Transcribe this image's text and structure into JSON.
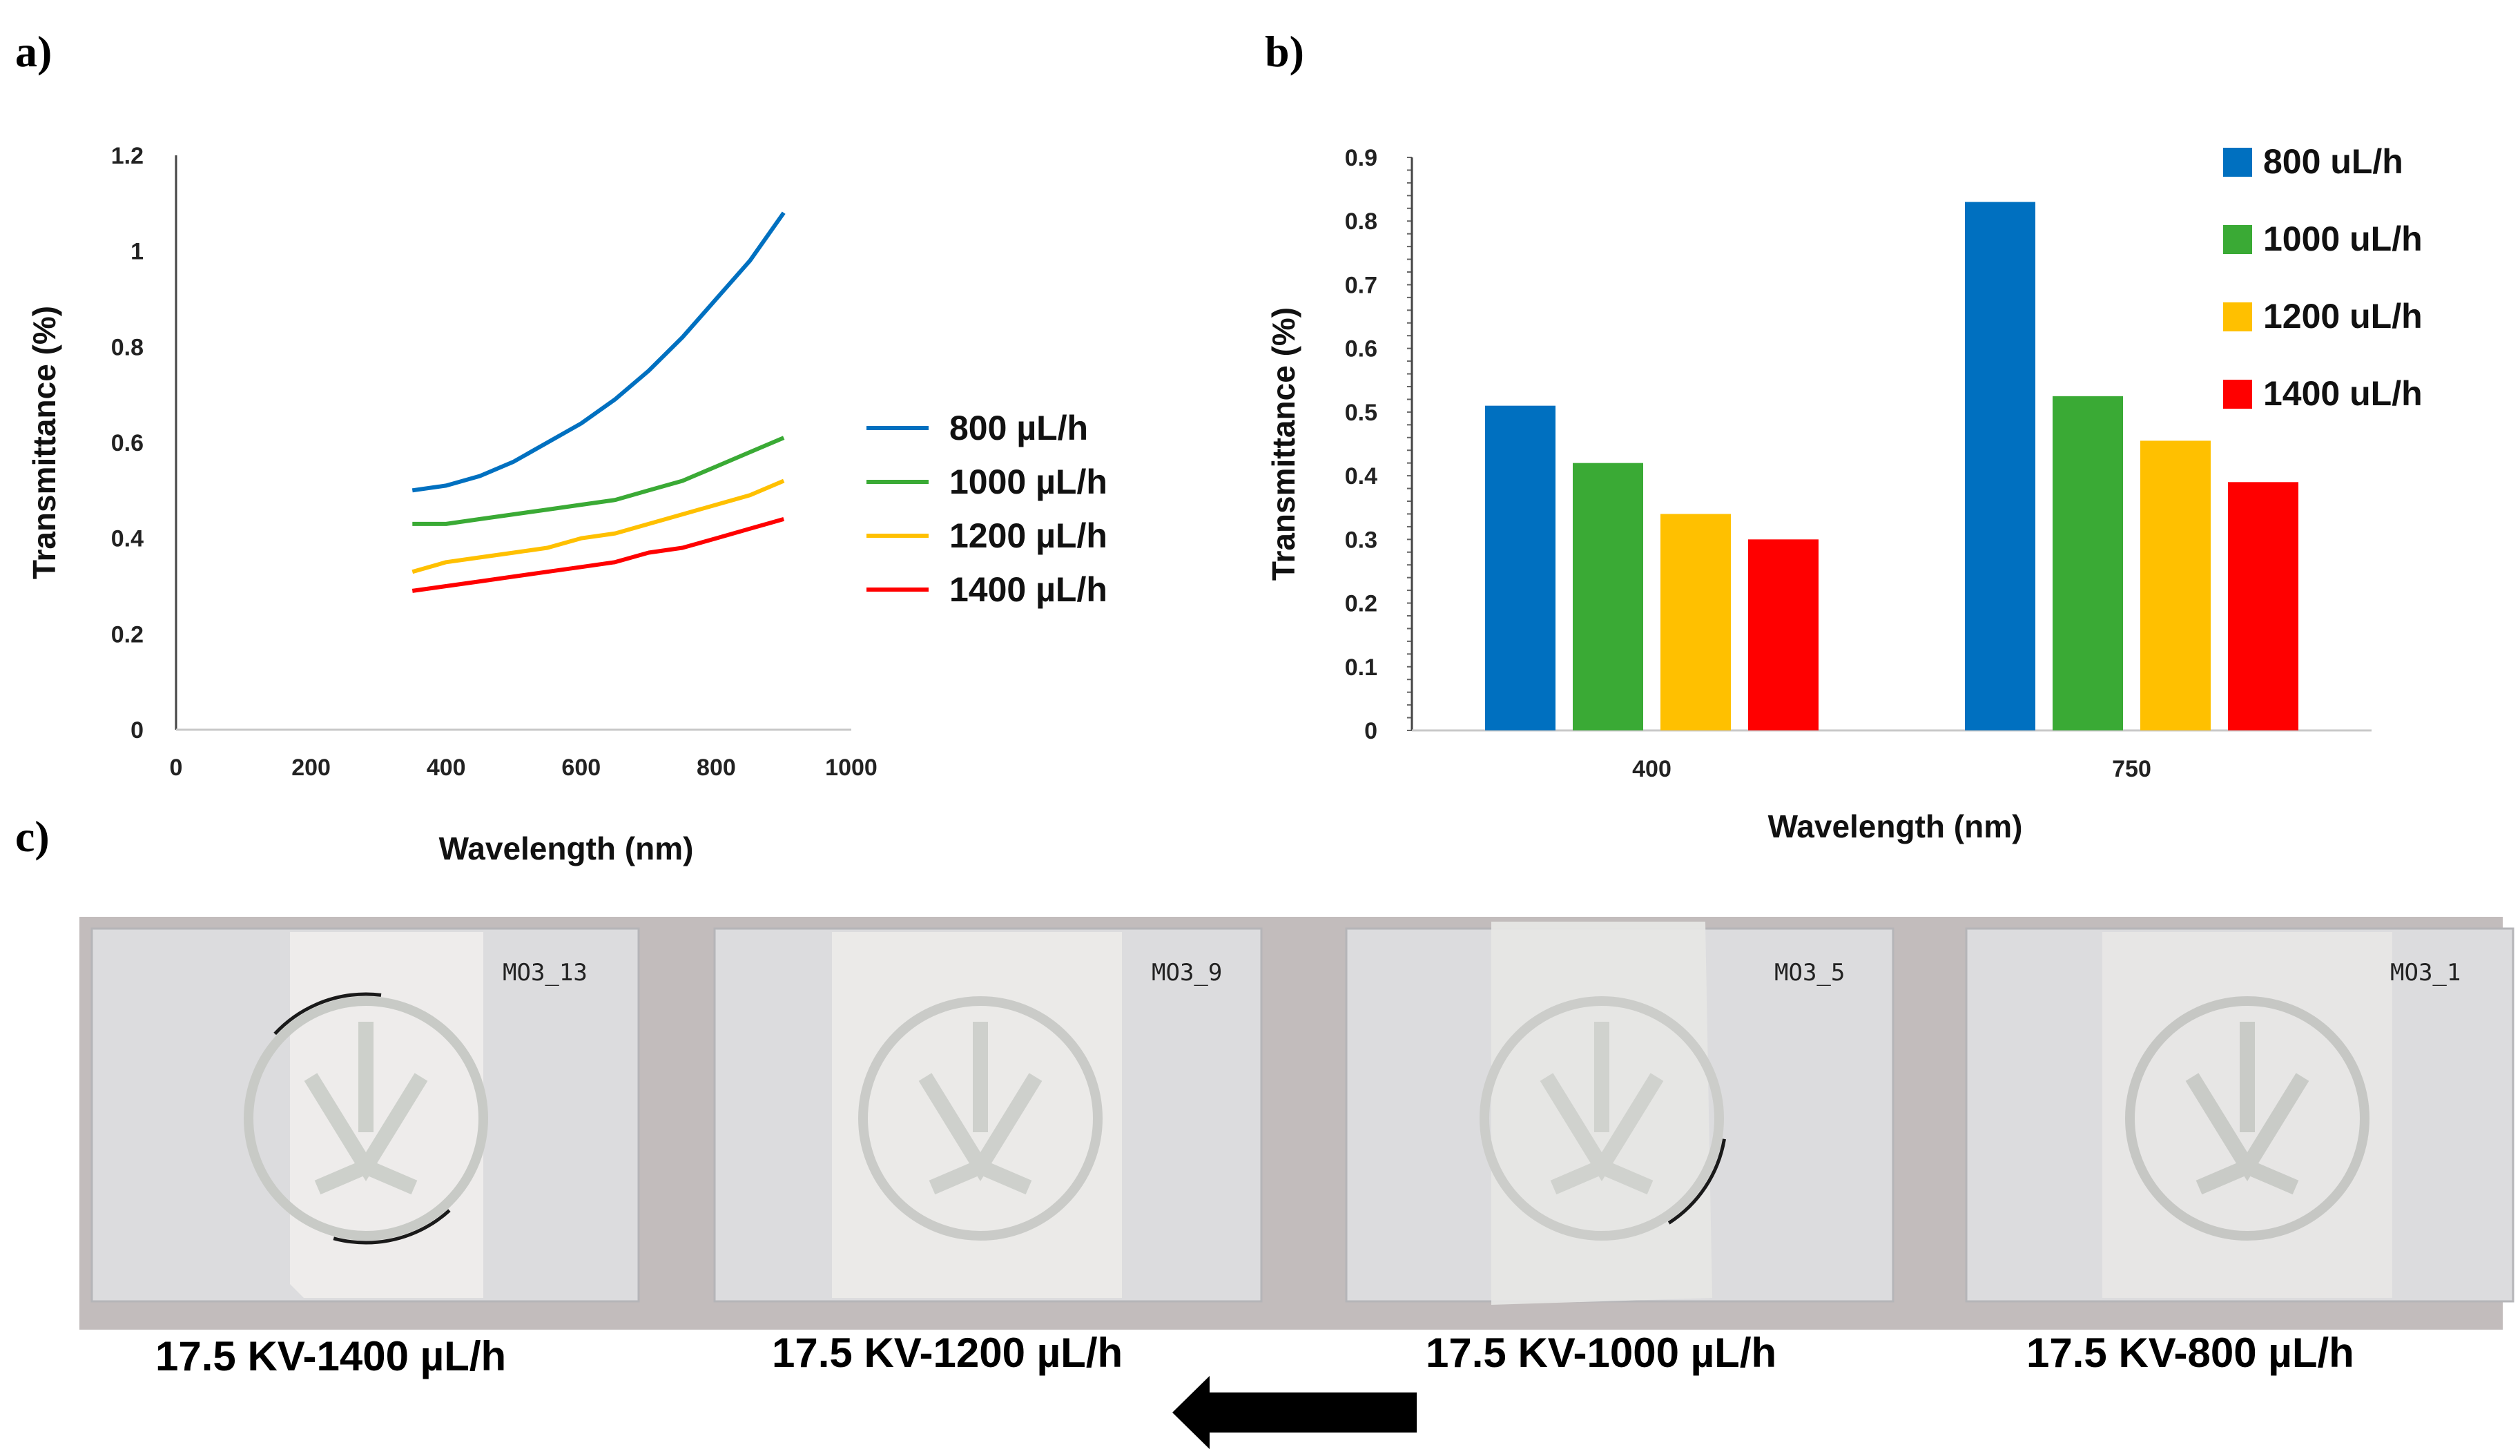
{
  "panels": {
    "a": "a)",
    "b": "b)",
    "c": "c)"
  },
  "chart_data": [
    {
      "type": "line",
      "panel": "a",
      "xlabel": "Wavelength (nm)",
      "ylabel": "Transmittance (%)",
      "xlim": [
        0,
        1000
      ],
      "ylim": [
        0,
        1.2
      ],
      "xticks": [
        0,
        200,
        400,
        600,
        800,
        1000
      ],
      "yticks": [
        0,
        0.2,
        0.4,
        0.6,
        0.8,
        1,
        1.2
      ],
      "grid": false,
      "legend": "right",
      "x": [
        350,
        400,
        450,
        500,
        550,
        600,
        650,
        700,
        750,
        800,
        850,
        900
      ],
      "series": [
        {
          "name": "800  µL/h",
          "color": "#0070C0",
          "values": [
            0.5,
            0.51,
            0.53,
            0.56,
            0.6,
            0.64,
            0.69,
            0.75,
            0.82,
            0.9,
            0.98,
            1.08
          ]
        },
        {
          "name": "1000 µL/h",
          "color": "#3AAA35",
          "values": [
            0.43,
            0.43,
            0.44,
            0.45,
            0.46,
            0.47,
            0.48,
            0.5,
            0.52,
            0.55,
            0.58,
            0.61
          ]
        },
        {
          "name": "1200 µL/h",
          "color": "#FFC000",
          "values": [
            0.33,
            0.35,
            0.36,
            0.37,
            0.38,
            0.4,
            0.41,
            0.43,
            0.45,
            0.47,
            0.49,
            0.52
          ]
        },
        {
          "name": "1400 µL/h",
          "color": "#FF0000",
          "values": [
            0.29,
            0.3,
            0.31,
            0.32,
            0.33,
            0.34,
            0.35,
            0.37,
            0.38,
            0.4,
            0.42,
            0.44
          ]
        }
      ]
    },
    {
      "type": "bar",
      "panel": "b",
      "xlabel": "Wavelength (nm)",
      "ylabel": "Transmittance (%)",
      "categories": [
        "400",
        "750"
      ],
      "ylim": [
        0,
        0.9
      ],
      "yticks": [
        0,
        0.1,
        0.2,
        0.3,
        0.4,
        0.5,
        0.6,
        0.7,
        0.8,
        0.9
      ],
      "grid": false,
      "legend": "top-right",
      "series": [
        {
          "name": "800 uL/h",
          "color": "#0070C0",
          "values": [
            0.51,
            0.83
          ]
        },
        {
          "name": "1000 uL/h",
          "color": "#3AAA35",
          "values": [
            0.42,
            0.525
          ]
        },
        {
          "name": "1200 uL/h",
          "color": "#FFC000",
          "values": [
            0.34,
            0.455
          ]
        },
        {
          "name": "1400 uL/h",
          "color": "#FF0000",
          "values": [
            0.3,
            0.39
          ]
        }
      ]
    }
  ],
  "photos": [
    {
      "label": "MO3_13",
      "caption": "17.5 KV-1400 µL/h"
    },
    {
      "label": "MO3_9",
      "caption": "17.5 KV-1200 µL/h"
    },
    {
      "label": "MO3_5",
      "caption": "17.5 KV-1000 µL/h"
    },
    {
      "label": "MO3_1",
      "caption": "17.5 KV-800 µL/h"
    }
  ],
  "arrow": {
    "direction": "left",
    "color": "#000000"
  }
}
